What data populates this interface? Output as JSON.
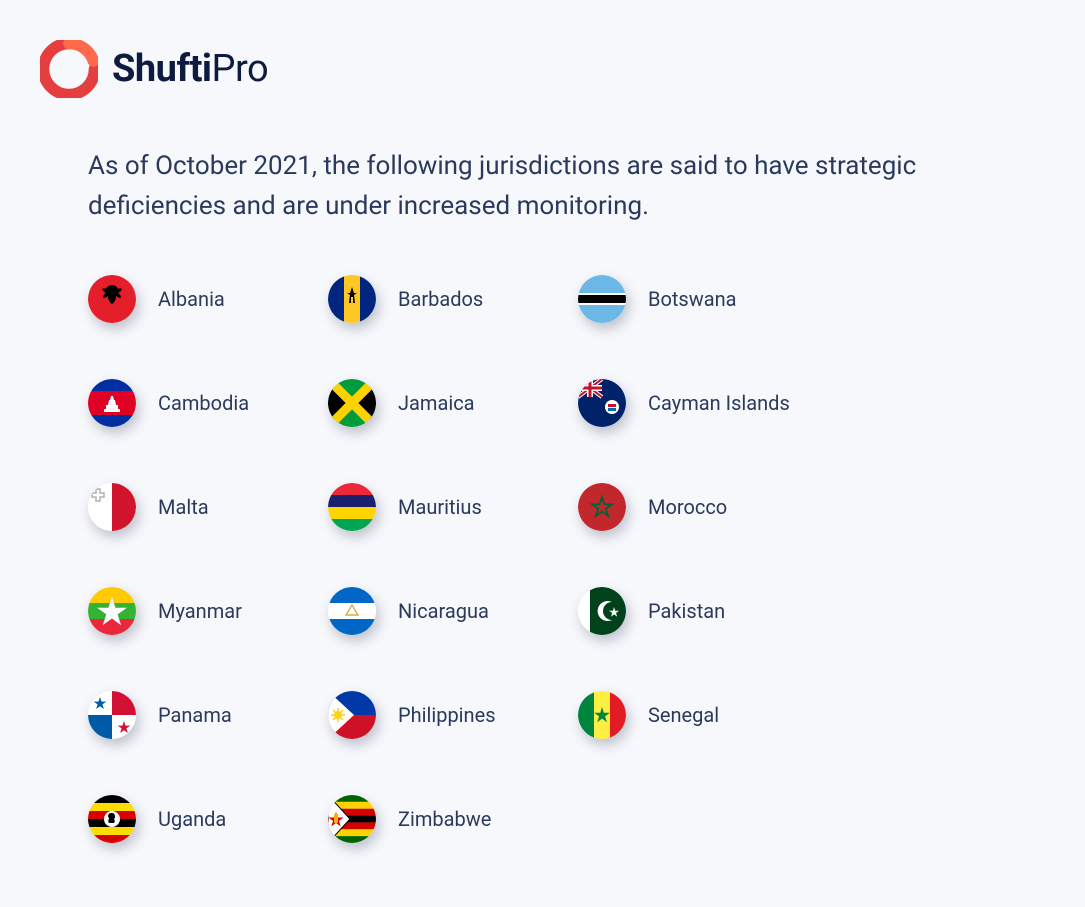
{
  "logo": {
    "brand_bold": "Shufti",
    "brand_light": "Pro",
    "mark_color": "#e53e3e"
  },
  "intro": "As of October 2021, the following jurisdictions are said to have strategic deficiencies and are under increased monitoring.",
  "text_color": "#2b3a5c",
  "background": "#f7f8fc",
  "flag_size": 48,
  "shadow": "3px 6px 12px rgba(20,30,60,.25)",
  "countries": [
    {
      "name": "Albania",
      "flag": "albania"
    },
    {
      "name": "Barbados",
      "flag": "barbados"
    },
    {
      "name": "Botswana",
      "flag": "botswana"
    },
    {
      "name": "Cambodia",
      "flag": "cambodia"
    },
    {
      "name": "Jamaica",
      "flag": "jamaica"
    },
    {
      "name": "Cayman Islands",
      "flag": "cayman"
    },
    {
      "name": "Malta",
      "flag": "malta"
    },
    {
      "name": "Mauritius",
      "flag": "mauritius"
    },
    {
      "name": "Morocco",
      "flag": "morocco"
    },
    {
      "name": "Myanmar",
      "flag": "myanmar"
    },
    {
      "name": "Nicaragua",
      "flag": "nicaragua"
    },
    {
      "name": "Pakistan",
      "flag": "pakistan"
    },
    {
      "name": "Panama",
      "flag": "panama"
    },
    {
      "name": "Philippines",
      "flag": "philippines"
    },
    {
      "name": "Senegal",
      "flag": "senegal"
    },
    {
      "name": "Uganda",
      "flag": "uganda"
    },
    {
      "name": "Zimbabwe",
      "flag": "zimbabwe"
    }
  ],
  "flag_colors": {
    "albania": {
      "bg": "#e41e2b",
      "emblem": "#000000"
    },
    "barbados": {
      "left": "#00267f",
      "mid": "#ffc726",
      "right": "#00267f",
      "emblem": "#000000"
    },
    "botswana": {
      "top": "#6bb7e6",
      "mid_outer": "#ffffff",
      "mid_inner": "#000000",
      "bottom": "#6bb7e6"
    },
    "cambodia": {
      "top": "#032ea1",
      "mid": "#e00025",
      "bottom": "#032ea1",
      "temple": "#ffffff"
    },
    "jamaica": {
      "tri": "#009b3a",
      "side": "#000000",
      "cross": "#fed100"
    },
    "cayman": {
      "bg": "#012169",
      "union": "#ffffff",
      "union_red": "#c8102e",
      "disc": "#ffffff"
    },
    "malta": {
      "left": "#ffffff",
      "right": "#cf142b",
      "cross": "#b0b0b0"
    },
    "mauritius": {
      "s1": "#ea2839",
      "s2": "#1a206d",
      "s3": "#ffd500",
      "s4": "#00a551"
    },
    "morocco": {
      "bg": "#c1272d",
      "star": "#006233"
    },
    "myanmar": {
      "s1": "#fecb00",
      "s2": "#34b233",
      "s3": "#ea2839",
      "star": "#ffffff"
    },
    "nicaragua": {
      "top": "#0067c6",
      "mid": "#ffffff",
      "bottom": "#0067c6",
      "emblem": "#c9a227"
    },
    "pakistan": {
      "left": "#ffffff",
      "right": "#01411c",
      "moon": "#ffffff"
    },
    "panama": {
      "tl": "#ffffff",
      "tr": "#d21034",
      "bl": "#005aa7",
      "br": "#ffffff",
      "star1": "#005aa7",
      "star2": "#d21034"
    },
    "philippines": {
      "top": "#0038a8",
      "bottom": "#ce1126",
      "tri": "#ffffff",
      "sun": "#fcd116"
    },
    "senegal": {
      "s1": "#00853f",
      "s2": "#fdef42",
      "s3": "#e31b23",
      "star": "#00853f"
    },
    "uganda": {
      "s1": "#000000",
      "s2": "#fcdc04",
      "s3": "#d90000",
      "disc": "#ffffff",
      "bird": "#000000"
    },
    "zimbabwe": {
      "s1": "#006400",
      "s2": "#ffd200",
      "s3": "#d40000",
      "s4": "#000000",
      "tri": "#ffffff",
      "star": "#d40000",
      "bird": "#fcad00"
    }
  }
}
